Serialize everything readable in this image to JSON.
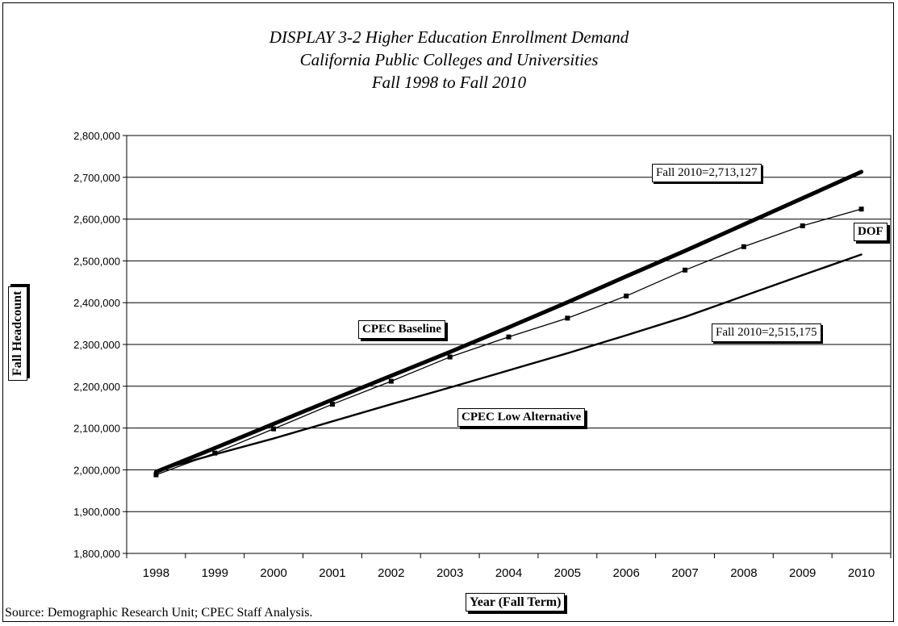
{
  "chart_data": {
    "type": "line",
    "title": "DISPLAY 3-2 Higher Education Enrollment Demand",
    "subtitle_lines": [
      "California Public Colleges and Universities",
      "Fall 1998 to Fall 2010"
    ],
    "xlabel": "Year (Fall Term)",
    "ylabel": "Fall Headcount",
    "categories": [
      "1998",
      "1999",
      "2000",
      "2001",
      "2002",
      "2003",
      "2004",
      "2005",
      "2006",
      "2007",
      "2008",
      "2009",
      "2010"
    ],
    "ylim": [
      1800000,
      2800000
    ],
    "yticks": [
      "1,800,000",
      "1,900,000",
      "2,000,000",
      "2,100,000",
      "2,200,000",
      "2,300,000",
      "2,400,000",
      "2,500,000",
      "2,600,000",
      "2,700,000",
      "2,800,000"
    ],
    "grid": "horizontal",
    "series": [
      {
        "name": "CPEC Baseline",
        "color": "#000000",
        "style": "thick",
        "values": [
          1995000,
          2052000,
          2110000,
          2168000,
          2225000,
          2282000,
          2341000,
          2401000,
          2463000,
          2524000,
          2587000,
          2650000,
          2713127
        ]
      },
      {
        "name": "DOF",
        "color": "#000000",
        "style": "markers",
        "values": [
          1988000,
          2040000,
          2098000,
          2157000,
          2212000,
          2270000,
          2318000,
          2363000,
          2416000,
          2478000,
          2534000,
          2584000,
          2624000
        ]
      },
      {
        "name": "CPEC Low Alternative",
        "color": "#000000",
        "style": "medium",
        "values": [
          1998000,
          2037000,
          2075000,
          2116000,
          2157000,
          2197000,
          2238000,
          2279000,
          2322000,
          2366000,
          2416000,
          2466000,
          2515175
        ]
      }
    ],
    "annotations": {
      "baseline_end": "Fall 2010=2,713,127",
      "low_end": "Fall 2010=2,515,175",
      "baseline_label": "CPEC Baseline",
      "dof_label": "DOF",
      "low_label": "CPEC Low Alternative"
    },
    "source": "Source: Demographic Research Unit; CPEC Staff Analysis."
  }
}
